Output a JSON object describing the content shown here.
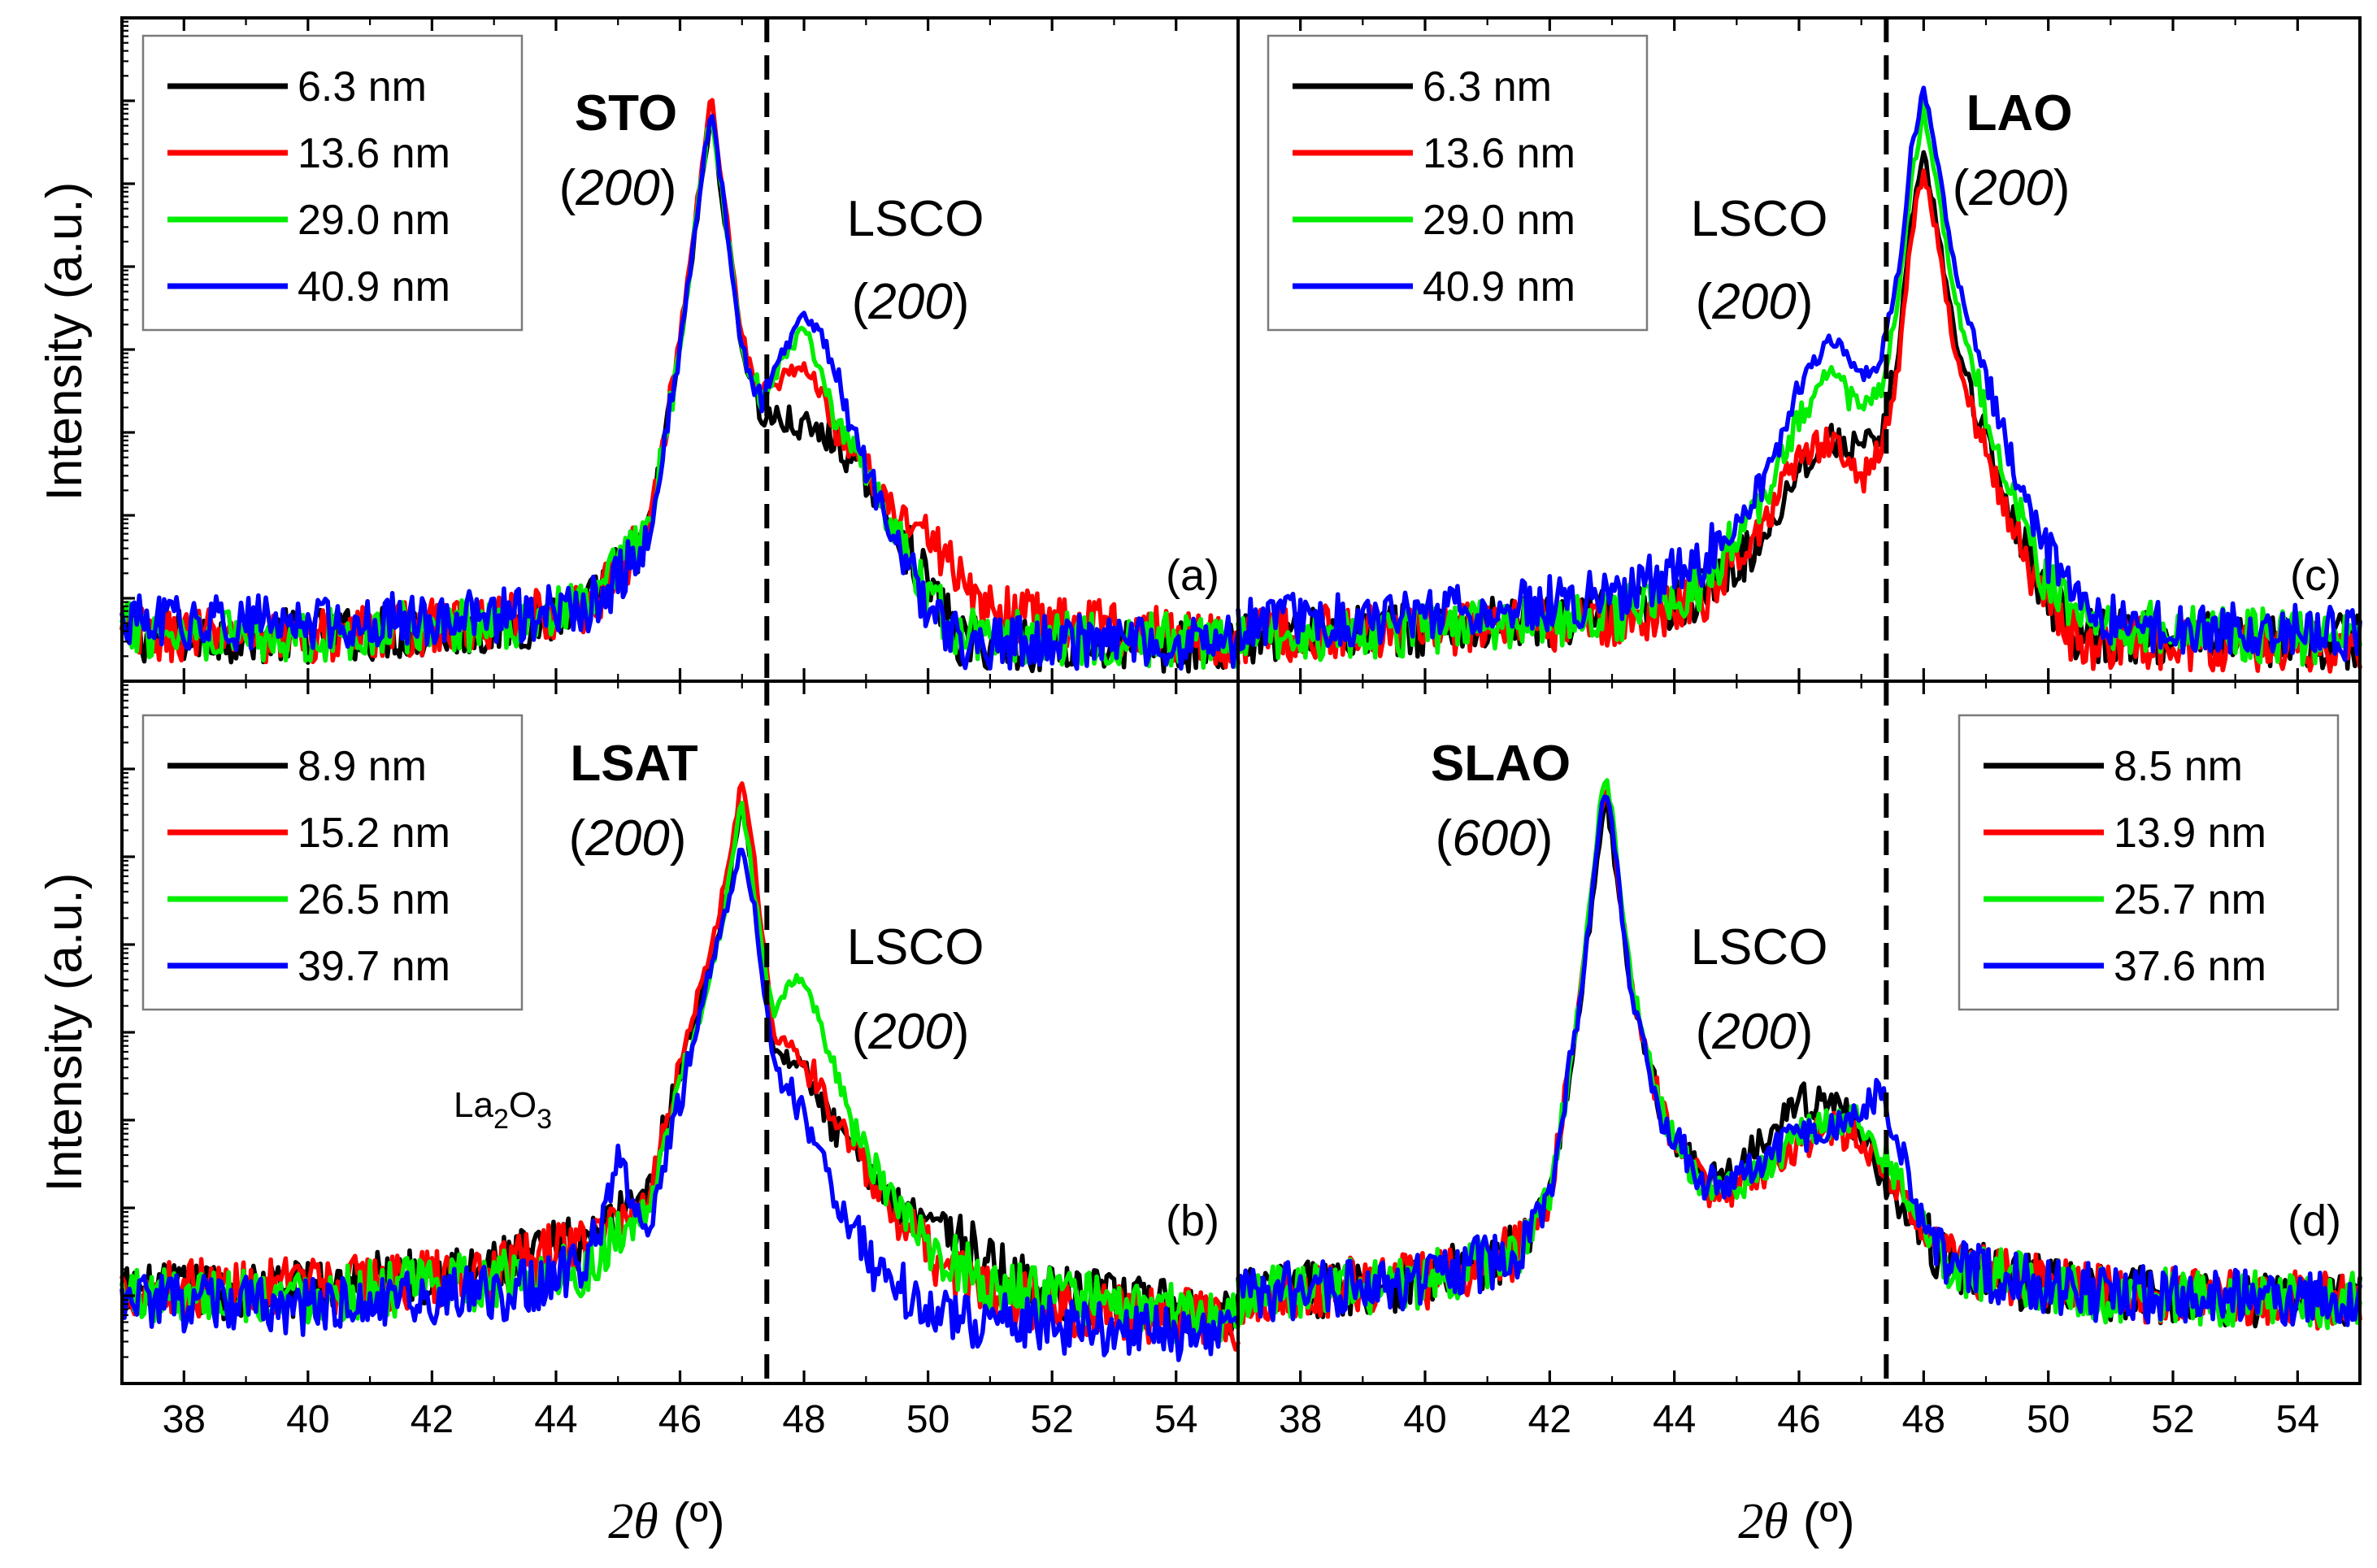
{
  "figure": {
    "xlabel_symbol": "2θ",
    "xlabel_unit": "(º)",
    "ylabel": "Intensity (a.u.)",
    "colors": {
      "c1": "#000000",
      "c2": "#ff0000",
      "c3": "#00ee00",
      "c4": "#0000ff"
    }
  },
  "chart_data": [
    {
      "id": "a",
      "type": "line",
      "panel_label": "(a)",
      "xlim": [
        37,
        55
      ],
      "xticks": [
        38,
        40,
        42,
        44,
        46,
        48,
        50,
        52,
        54
      ],
      "ylim": [
        0,
        100
      ],
      "dashed_x": 47.4,
      "xlabel": "2θ (º)",
      "ylabel": "Intensity (a.u.)",
      "substrate": {
        "name": "STO",
        "index": "200",
        "x": 46.5
      },
      "film": {
        "name": "LSCO",
        "index": "200",
        "x": 48.0
      },
      "legend": {
        "position": "top-left"
      },
      "series": [
        {
          "name": "6.3 nm",
          "color": "#000000",
          "x": [
            37,
            40,
            43,
            44.5,
            45.5,
            46.0,
            46.3,
            46.5,
            46.7,
            47.0,
            47.3,
            48.0,
            48.5,
            49.0,
            50.0,
            50.5,
            55
          ],
          "values": [
            6,
            6,
            7,
            10,
            22,
            50,
            72,
            86,
            72,
            50,
            40,
            38,
            36,
            30,
            14,
            5,
            4
          ]
        },
        {
          "name": "13.6 nm",
          "color": "#ff0000",
          "x": [
            37,
            40,
            43,
            44.5,
            45.5,
            46.0,
            46.3,
            46.5,
            46.7,
            47.0,
            47.3,
            47.7,
            48.0,
            48.5,
            49.0,
            49.5,
            50.0,
            50.8,
            55
          ],
          "values": [
            6,
            6,
            8,
            10,
            22,
            52,
            74,
            89,
            74,
            52,
            42,
            46,
            48,
            38,
            32,
            24,
            22,
            10,
            5
          ]
        },
        {
          "name": "29.0 nm",
          "color": "#00ee00",
          "x": [
            37,
            40,
            43,
            44.5,
            45.5,
            46.0,
            46.3,
            46.5,
            46.7,
            47.0,
            47.3,
            47.7,
            48.0,
            48.5,
            49.0,
            49.5,
            50.0,
            50.5,
            55
          ],
          "values": [
            7,
            6,
            8,
            10,
            22,
            50,
            73,
            87,
            73,
            50,
            42,
            49,
            54,
            40,
            30,
            22,
            12,
            6,
            5
          ]
        },
        {
          "name": "40.9 nm",
          "color": "#0000ff",
          "x": [
            37,
            40,
            43,
            44.5,
            45.5,
            46.0,
            46.3,
            46.5,
            46.7,
            47.0,
            47.3,
            47.7,
            48.0,
            48.3,
            49.0,
            49.5,
            50.0,
            50.5,
            55
          ],
          "values": [
            8,
            8,
            9,
            10,
            20,
            50,
            73,
            87,
            73,
            50,
            42,
            50,
            55,
            52,
            32,
            20,
            10,
            5,
            5
          ]
        }
      ]
    },
    {
      "id": "b",
      "type": "line",
      "panel_label": "(b)",
      "xlim": [
        37,
        55
      ],
      "xticks": [
        38,
        40,
        42,
        44,
        46,
        48,
        50,
        52,
        54
      ],
      "ylim": [
        0,
        100
      ],
      "dashed_x": 47.4,
      "xlabel": "2θ (º)",
      "ylabel": "Intensity (a.u.)",
      "substrate": {
        "name": "LSAT",
        "index": "200",
        "x": 47.0
      },
      "film": {
        "name": "LSCO",
        "index": "200",
        "x": 48.0
      },
      "extra_peak": {
        "name_base": "La",
        "sub1": "2",
        "mid": "O",
        "sub2": "3",
        "x": 45.0
      },
      "legend": {
        "position": "top-left"
      },
      "series": [
        {
          "name": "8.9 nm",
          "color": "#000000",
          "x": [
            37,
            40,
            43,
            44.5,
            45.5,
            46.0,
            46.5,
            46.8,
            47.0,
            47.2,
            47.5,
            48.0,
            48.5,
            49.0,
            49.5,
            50.0,
            51.0,
            52.0,
            55
          ],
          "values": [
            12,
            13,
            16,
            20,
            28,
            45,
            60,
            72,
            83,
            72,
            48,
            44,
            36,
            30,
            25,
            24,
            16,
            12,
            9
          ]
        },
        {
          "name": "15.2 nm",
          "color": "#ff0000",
          "x": [
            37,
            40,
            43,
            44.5,
            45.5,
            46.0,
            46.5,
            46.8,
            47.0,
            47.2,
            47.5,
            48.0,
            48.5,
            49.0,
            49.5,
            50.0,
            51.0,
            52.0,
            55
          ],
          "values": [
            13,
            13,
            15,
            20,
            26,
            46,
            62,
            75,
            87,
            75,
            50,
            46,
            38,
            30,
            22,
            18,
            12,
            10,
            8
          ]
        },
        {
          "name": "26.5 nm",
          "color": "#00ee00",
          "x": [
            37,
            40,
            43,
            44.5,
            45.5,
            46.0,
            46.5,
            46.8,
            47.0,
            47.2,
            47.5,
            47.8,
            48.0,
            48.3,
            48.8,
            49.5,
            50.0,
            51.0,
            55
          ],
          "values": [
            12,
            12,
            14,
            16,
            24,
            42,
            58,
            72,
            84,
            70,
            52,
            57,
            58,
            50,
            36,
            24,
            20,
            13,
            8
          ]
        },
        {
          "name": "39.7 nm",
          "color": "#0000ff",
          "x": [
            37,
            40,
            43,
            44.5,
            44.8,
            45.0,
            45.2,
            45.5,
            46.0,
            46.5,
            46.8,
            47.0,
            47.2,
            47.5,
            48.0,
            48.5,
            49.0,
            49.5,
            50.0,
            51.0,
            55
          ],
          "values": [
            11,
            10,
            12,
            16,
            24,
            34,
            26,
            22,
            40,
            60,
            70,
            77,
            68,
            46,
            38,
            26,
            18,
            13,
            10,
            8,
            6
          ]
        }
      ]
    },
    {
      "id": "c",
      "type": "line",
      "panel_label": "(c)",
      "xlim": [
        37,
        55
      ],
      "xticks": [
        38,
        40,
        42,
        44,
        46,
        48,
        50,
        52,
        54
      ],
      "ylim": [
        0,
        100
      ],
      "dashed_x": 47.4,
      "xlabel": "2θ (º)",
      "ylabel": "Intensity (a.u.)",
      "substrate": {
        "name": "LAO",
        "index": "200",
        "x": 48.0
      },
      "film": {
        "name": "LSCO",
        "index": "200",
        "x": 46.5
      },
      "legend": {
        "position": "top-left"
      },
      "series": [
        {
          "name": "6.3 nm",
          "color": "#000000",
          "x": [
            37,
            40,
            43,
            44.5,
            45.5,
            46.0,
            46.5,
            47.0,
            47.3,
            47.6,
            47.8,
            48.0,
            48.2,
            48.5,
            49.0,
            49.5,
            50.0,
            50.5,
            55
          ],
          "values": [
            6,
            7,
            9,
            12,
            22,
            32,
            36,
            35,
            35,
            50,
            70,
            80,
            70,
            52,
            36,
            22,
            12,
            6,
            5
          ]
        },
        {
          "name": "13.6 nm",
          "color": "#ff0000",
          "x": [
            37,
            40,
            43,
            44.5,
            45.5,
            46.0,
            46.5,
            47.0,
            47.3,
            47.6,
            47.8,
            48.0,
            48.2,
            48.5,
            49.0,
            49.5,
            50.0,
            50.5,
            55
          ],
          "values": [
            6,
            7,
            8,
            12,
            24,
            34,
            36,
            30,
            34,
            48,
            68,
            78,
            68,
            50,
            34,
            20,
            10,
            5,
            4
          ]
        },
        {
          "name": "29.0 nm",
          "color": "#00ee00",
          "x": [
            37,
            40,
            43,
            44.5,
            45.5,
            46.0,
            46.5,
            47.0,
            47.3,
            47.6,
            47.8,
            48.0,
            48.2,
            48.5,
            49.0,
            49.5,
            50.0,
            50.5,
            55
          ],
          "values": [
            6,
            7,
            9,
            14,
            28,
            40,
            47,
            40,
            43,
            58,
            76,
            87,
            76,
            58,
            40,
            26,
            14,
            8,
            5
          ]
        },
        {
          "name": "40.9 nm",
          "color": "#0000ff",
          "x": [
            37,
            40,
            43,
            44.5,
            45.5,
            46.0,
            46.5,
            47.0,
            47.3,
            47.6,
            47.8,
            48.0,
            48.2,
            48.5,
            49.0,
            49.5,
            50.0,
            50.5,
            51.0,
            55
          ],
          "values": [
            8,
            9,
            12,
            18,
            30,
            44,
            52,
            46,
            48,
            62,
            80,
            90,
            80,
            62,
            46,
            30,
            18,
            12,
            8,
            6
          ]
        }
      ]
    },
    {
      "id": "d",
      "type": "line",
      "panel_label": "(d)",
      "xlim": [
        37,
        55
      ],
      "xticks": [
        38,
        40,
        42,
        44,
        46,
        48,
        50,
        52,
        54
      ],
      "ylim": [
        0,
        100
      ],
      "dashed_x": 47.4,
      "xlabel": "2θ (º)",
      "ylabel": "Intensity (a.u.)",
      "substrate": {
        "name": "SLAO",
        "index": "600",
        "x": 42.9
      },
      "film": {
        "name": "LSCO",
        "index": "200",
        "x": 46.5
      },
      "legend": {
        "position": "top-right"
      },
      "series": [
        {
          "name": "8.5 nm",
          "color": "#000000",
          "x": [
            37,
            40,
            41.5,
            42.0,
            42.5,
            42.8,
            42.9,
            43.0,
            43.3,
            43.8,
            44.5,
            45.0,
            45.5,
            46.0,
            46.5,
            47.0,
            47.5,
            48.0,
            48.5,
            49.5,
            51.0,
            55
          ],
          "values": [
            12,
            14,
            18,
            26,
            55,
            78,
            85,
            78,
            56,
            38,
            28,
            30,
            36,
            40,
            40,
            36,
            26,
            20,
            16,
            14,
            12,
            11
          ]
        },
        {
          "name": "13.9 nm",
          "color": "#ff0000",
          "x": [
            37,
            40,
            41.5,
            42.0,
            42.5,
            42.8,
            42.9,
            43.0,
            43.3,
            43.8,
            44.5,
            45.0,
            45.5,
            46.0,
            46.5,
            47.0,
            47.5,
            48.0,
            48.5,
            49.5,
            51.0,
            55
          ],
          "values": [
            12,
            14,
            18,
            26,
            56,
            80,
            86,
            80,
            57,
            38,
            27,
            27,
            30,
            34,
            36,
            34,
            28,
            22,
            16,
            14,
            12,
            11
          ]
        },
        {
          "name": "25.7 nm",
          "color": "#00ee00",
          "x": [
            37,
            40,
            41.5,
            42.0,
            42.5,
            42.8,
            42.9,
            43.0,
            43.3,
            43.8,
            44.5,
            45.0,
            45.5,
            46.0,
            46.5,
            47.0,
            47.5,
            48.0,
            48.5,
            49.5,
            51.0,
            55
          ],
          "values": [
            12,
            14,
            18,
            26,
            56,
            82,
            88,
            82,
            58,
            38,
            27,
            27,
            31,
            35,
            37,
            37,
            30,
            22,
            16,
            14,
            12,
            11
          ]
        },
        {
          "name": "37.6 nm",
          "color": "#0000ff",
          "x": [
            37,
            40,
            41.5,
            42.0,
            42.5,
            42.8,
            42.9,
            43.0,
            43.3,
            43.8,
            44.5,
            45.0,
            45.5,
            46.0,
            46.5,
            47.0,
            47.3,
            47.6,
            48.0,
            48.5,
            49.5,
            51.0,
            55
          ],
          "values": [
            12,
            14,
            18,
            26,
            55,
            80,
            86,
            80,
            56,
            38,
            28,
            29,
            32,
            35,
            36,
            38,
            42,
            34,
            22,
            16,
            14,
            12,
            11
          ]
        }
      ]
    }
  ]
}
